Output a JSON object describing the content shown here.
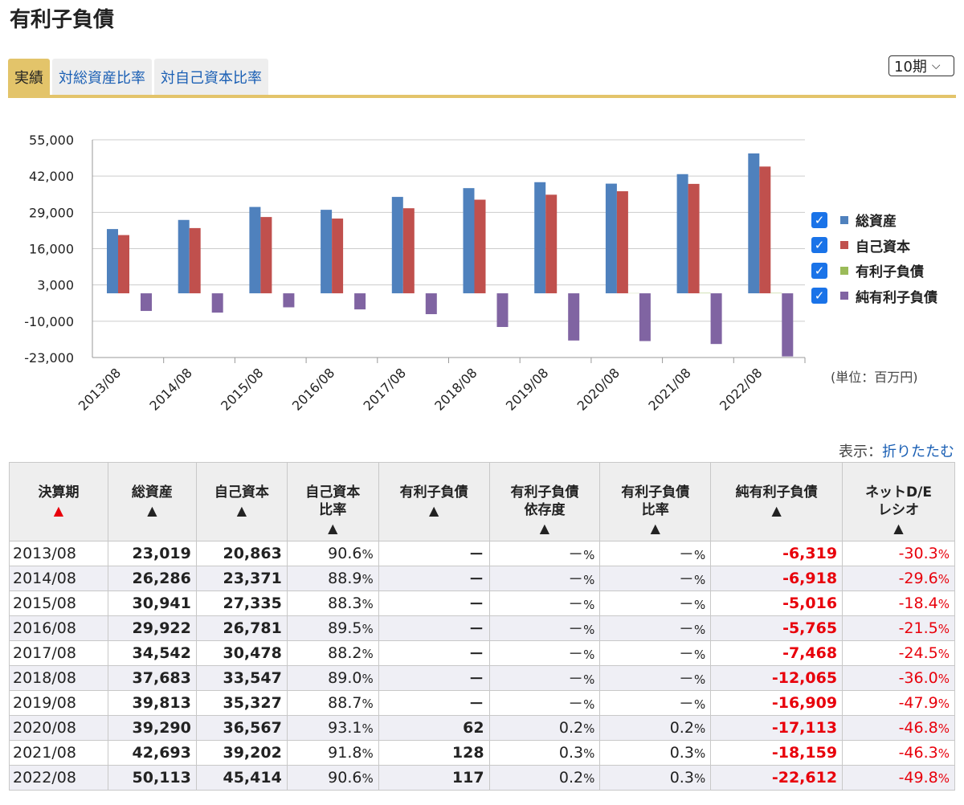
{
  "page_title": "有利子負債",
  "tabs": [
    {
      "label": "実績",
      "active": true
    },
    {
      "label": "対総資産比率",
      "active": false
    },
    {
      "label": "対自己資本比率",
      "active": false
    }
  ],
  "period_select": {
    "value": "10期"
  },
  "legend": [
    {
      "label": "総資産",
      "color": "#4f81bd",
      "checked": true
    },
    {
      "label": "自己資本",
      "color": "#c0504d",
      "checked": true
    },
    {
      "label": "有利子負債",
      "color": "#9bbb59",
      "checked": true
    },
    {
      "label": "純有利子負債",
      "color": "#8064a2",
      "checked": true
    }
  ],
  "unit_label": "(単位：百万円)",
  "display_toggle": {
    "label": "表示：",
    "link": "折りたたむ"
  },
  "chart_data": {
    "type": "bar",
    "categories": [
      "2013/08",
      "2014/08",
      "2015/08",
      "2016/08",
      "2017/08",
      "2018/08",
      "2019/08",
      "2020/08",
      "2021/08",
      "2022/08"
    ],
    "series": [
      {
        "name": "総資産",
        "color": "#4f81bd",
        "values": [
          23019,
          26286,
          30941,
          29922,
          34542,
          37683,
          39813,
          39290,
          42693,
          50113
        ]
      },
      {
        "name": "自己資本",
        "color": "#c0504d",
        "values": [
          20863,
          23371,
          27335,
          26781,
          30478,
          33547,
          35327,
          36567,
          39202,
          45414
        ]
      },
      {
        "name": "有利子負債",
        "color": "#9bbb59",
        "values": [
          0,
          0,
          0,
          0,
          0,
          0,
          0,
          62,
          128,
          117
        ]
      },
      {
        "name": "純有利子負債",
        "color": "#8064a2",
        "values": [
          -6319,
          -6918,
          -5016,
          -5765,
          -7468,
          -12065,
          -16909,
          -17113,
          -18159,
          -22612
        ]
      }
    ],
    "ylim": [
      -23000,
      55000
    ],
    "yticks": [
      55000,
      42000,
      29000,
      16000,
      3000,
      -10000,
      -23000
    ],
    "ytick_labels": [
      "55,000",
      "42,000",
      "29,000",
      "16,000",
      "3,000",
      "-10,000",
      "-23,000"
    ],
    "legend_position": "right",
    "grid": true
  },
  "table": {
    "headers": [
      {
        "label": "決算期",
        "sort_active": true
      },
      {
        "label": "総資産"
      },
      {
        "label": "自己資本"
      },
      {
        "label": "自己資本\n比率"
      },
      {
        "label": "有利子負債"
      },
      {
        "label": "有利子負債\n依存度"
      },
      {
        "label": "有利子負債\n比率"
      },
      {
        "label": "純有利子負債"
      },
      {
        "label": "ネットD/E\nレシオ"
      }
    ],
    "sort_arrow": "▲",
    "rows": [
      [
        "2013/08",
        "23,019",
        "20,863",
        "90.6",
        "－",
        "－",
        "－",
        "-6,319",
        "-30.3"
      ],
      [
        "2014/08",
        "26,286",
        "23,371",
        "88.9",
        "－",
        "－",
        "－",
        "-6,918",
        "-29.6"
      ],
      [
        "2015/08",
        "30,941",
        "27,335",
        "88.3",
        "－",
        "－",
        "－",
        "-5,016",
        "-18.4"
      ],
      [
        "2016/08",
        "29,922",
        "26,781",
        "89.5",
        "－",
        "－",
        "－",
        "-5,765",
        "-21.5"
      ],
      [
        "2017/08",
        "34,542",
        "30,478",
        "88.2",
        "－",
        "－",
        "－",
        "-7,468",
        "-24.5"
      ],
      [
        "2018/08",
        "37,683",
        "33,547",
        "89.0",
        "－",
        "－",
        "－",
        "-12,065",
        "-36.0"
      ],
      [
        "2019/08",
        "39,813",
        "35,327",
        "88.7",
        "－",
        "－",
        "－",
        "-16,909",
        "-47.9"
      ],
      [
        "2020/08",
        "39,290",
        "36,567",
        "93.1",
        "62",
        "0.2",
        "0.2",
        "-17,113",
        "-46.8"
      ],
      [
        "2021/08",
        "42,693",
        "39,202",
        "91.8",
        "128",
        "0.3",
        "0.3",
        "-18,159",
        "-46.3"
      ],
      [
        "2022/08",
        "50,113",
        "45,414",
        "90.6",
        "117",
        "0.2",
        "0.3",
        "-22,612",
        "-49.8"
      ]
    ],
    "pct_suffix": "%"
  }
}
